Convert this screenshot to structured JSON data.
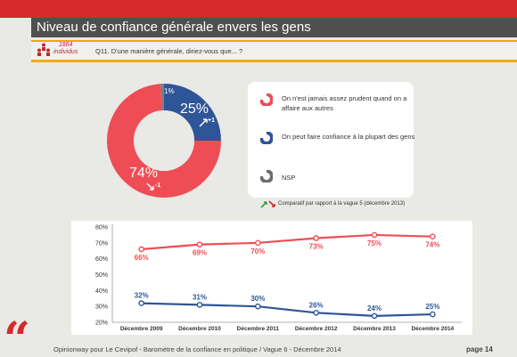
{
  "header": {
    "title": "Niveau de confiance générale envers les gens",
    "sample_count": "1864",
    "sample_unit": "individus",
    "question": "Q11. D'une manière générale, diriez-vous que... ?"
  },
  "donut": {
    "slices": [
      {
        "name": "On n'est jamais assez prudent quand on a affaire aux autres",
        "value": 74,
        "label": "74%",
        "change": "-1",
        "color": "#ef4d55"
      },
      {
        "name": "On peut faire confiance à la plupart des gens",
        "value": 25,
        "label": "25%",
        "change": "+1",
        "color": "#2e5597"
      },
      {
        "name": "NSP",
        "value": 1,
        "label": "1%",
        "color": "#7f7f7f"
      }
    ]
  },
  "legend": {
    "items": [
      {
        "text": "On n'est jamais assez prudent quand on a affaire aux autres",
        "color": "#ef4d55"
      },
      {
        "text": "On peut faire confiance à la plupart des gens",
        "color": "#2e5597"
      },
      {
        "text": "NSP",
        "color": "#6d6d6d"
      }
    ],
    "comparison_note": "Comparatif par rapport à la vague 5  (décembre 2013)"
  },
  "chart_data": {
    "type": "line",
    "categories": [
      "Décembre 2009",
      "Décembre 2010",
      "Décembre 2011",
      "Décembre 2012",
      "Décembre 2013",
      "Décembre 2014"
    ],
    "y_ticks": [
      "80%",
      "70%",
      "60%",
      "50%",
      "40%",
      "30%",
      "20%"
    ],
    "ylim": [
      20,
      80
    ],
    "grid": false,
    "series": [
      {
        "values": [
          66,
          69,
          70,
          73,
          75,
          74
        ],
        "labels": [
          "66%",
          "69%",
          "70%",
          "73%",
          "75%",
          "74%"
        ],
        "color": "#ef4d55"
      },
      {
        "values": [
          32,
          31,
          30,
          26,
          24,
          25
        ],
        "labels": [
          "32%",
          "31%",
          "30%",
          "26%",
          "24%",
          "25%"
        ],
        "color": "#2e5597"
      }
    ]
  },
  "footer": {
    "quote_mark": "“",
    "source": "Opinionway pour Le Cevipof - Baromètre de la confiance en politique / Vague 6 - Décembre 2014",
    "page": "page 14"
  }
}
